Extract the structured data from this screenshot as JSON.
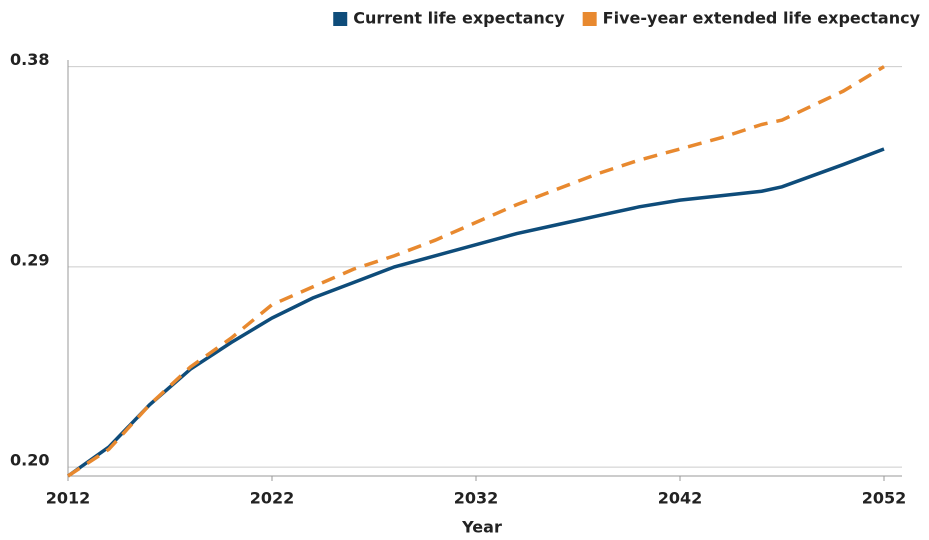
{
  "chart_data": {
    "type": "line",
    "x": [
      2012,
      2014,
      2016,
      2018,
      2020,
      2022,
      2024,
      2026,
      2028,
      2030,
      2032,
      2034,
      2036,
      2038,
      2040,
      2042,
      2044,
      2046,
      2047,
      2050,
      2052
    ],
    "series": [
      {
        "name": "Current life expectancy",
        "color": "#0e4c7a",
        "dash": false,
        "values": [
          0.196,
          0.209,
          0.228,
          0.244,
          0.256,
          0.267,
          0.276,
          0.283,
          0.29,
          0.295,
          0.3,
          0.305,
          0.309,
          0.313,
          0.317,
          0.32,
          0.322,
          0.324,
          0.326,
          0.336,
          0.343
        ]
      },
      {
        "name": "Five-year extended life expectancy",
        "color": "#e8892f",
        "dash": true,
        "values": [
          0.196,
          0.208,
          0.228,
          0.245,
          0.258,
          0.273,
          0.281,
          0.289,
          0.295,
          0.302,
          0.31,
          0.318,
          0.325,
          0.332,
          0.338,
          0.343,
          0.348,
          0.354,
          0.356,
          0.369,
          0.38
        ]
      }
    ],
    "xlabel": "Year",
    "xlim": [
      2012,
      2052
    ],
    "xticks": [
      2012,
      2022,
      2032,
      2042,
      2052
    ],
    "ylim": [
      0.196,
      0.383
    ],
    "yticks": [
      {
        "value": 0.2,
        "label": "0.20"
      },
      0.29,
      0.38
    ],
    "grid": true,
    "legend": "top-right"
  }
}
